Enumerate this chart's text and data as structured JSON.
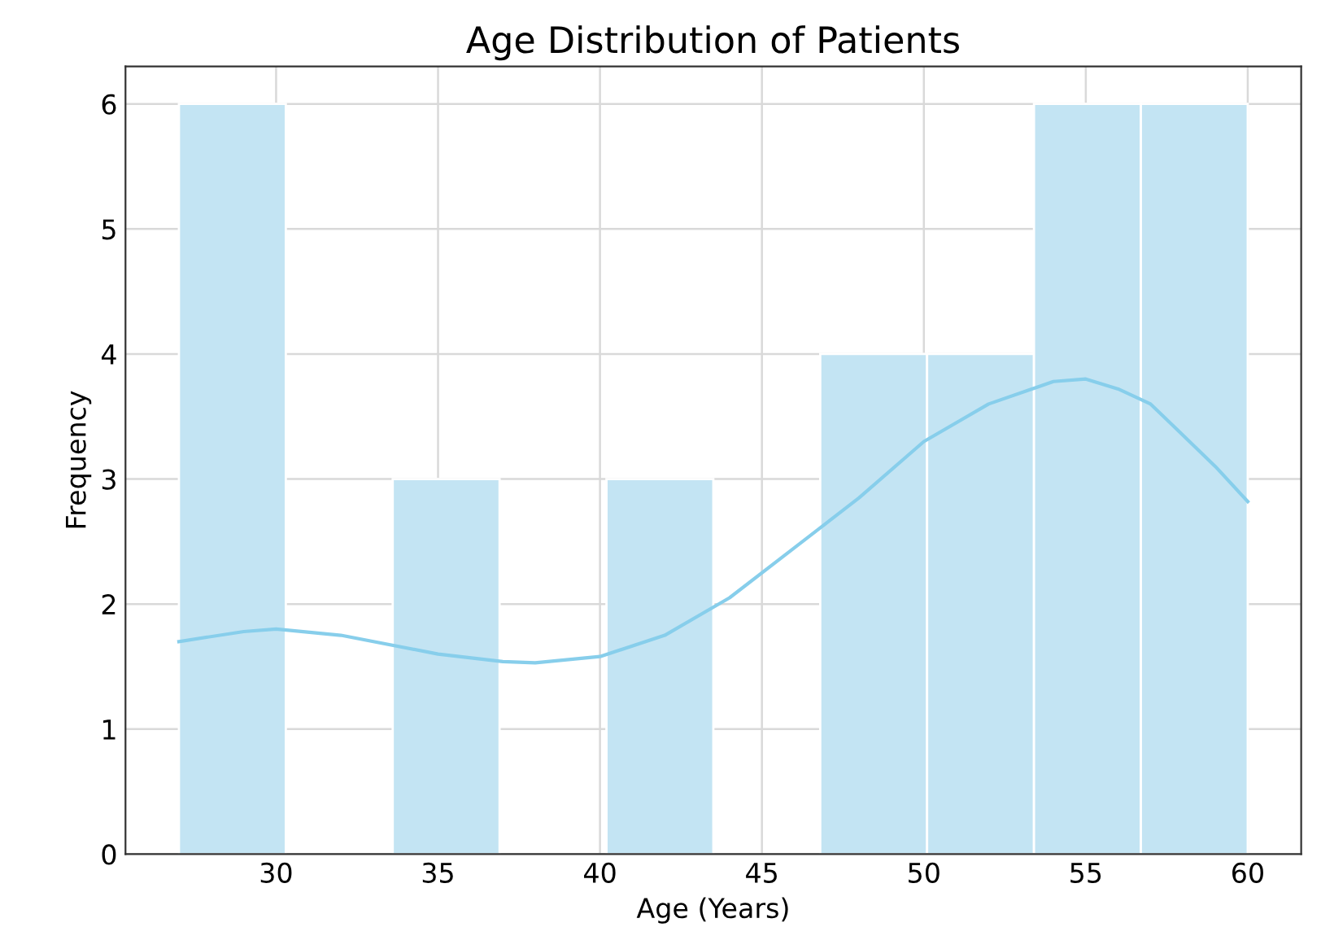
{
  "chart_data": {
    "type": "histogram",
    "title": "Age Distribution of Patients",
    "xlabel": "Age (Years)",
    "ylabel": "Frequency",
    "bins": [
      27,
      30.3,
      33.6,
      36.9,
      40.2,
      43.5,
      46.8,
      50.1,
      53.4,
      56.7,
      60
    ],
    "values": [
      6,
      0,
      3,
      0,
      3,
      0,
      4,
      4,
      6,
      6
    ],
    "color": "#c3e4f3",
    "series": [
      {
        "type": "line",
        "color": "#87ceeb",
        "x": [
          27,
          29,
          30,
          32,
          35,
          37,
          38,
          40,
          42,
          44,
          46,
          48,
          50,
          52,
          54,
          55,
          56,
          57,
          58,
          59,
          60
        ],
        "values": [
          1.7,
          1.78,
          1.8,
          1.75,
          1.6,
          1.54,
          1.53,
          1.58,
          1.75,
          2.05,
          2.45,
          2.85,
          3.3,
          3.6,
          3.78,
          3.8,
          3.72,
          3.6,
          3.35,
          3.1,
          2.82
        ]
      }
    ],
    "xlim": [
      25.35,
      61.65
    ],
    "ylim": [
      0,
      6.3
    ],
    "xticks": [
      30,
      35,
      40,
      45,
      50,
      55,
      60
    ],
    "yticks": [
      0,
      1,
      2,
      3,
      4,
      5,
      6
    ],
    "grid": true,
    "line_style": "solid"
  }
}
